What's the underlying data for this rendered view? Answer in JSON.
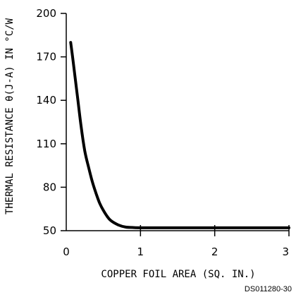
{
  "chart_data": {
    "type": "line",
    "title": "",
    "xlabel": "COPPER FOIL AREA (SQ. IN.)",
    "ylabel": "THERMAL RESISTANCE θ(J-A) IN °C/W",
    "xlim": [
      0,
      3
    ],
    "ylim": [
      50,
      200
    ],
    "x_ticks": [
      0,
      1,
      2,
      3
    ],
    "x_tick_labels": [
      "0",
      "1",
      "2",
      "3"
    ],
    "y_ticks": [
      50,
      80,
      110,
      140,
      170,
      200
    ],
    "y_tick_labels": [
      "50",
      "80",
      "110",
      "140",
      "170",
      "200"
    ],
    "grid": false,
    "legend": "none",
    "series": [
      {
        "x": [
          0.06,
          0.1,
          0.15,
          0.2,
          0.25,
          0.3,
          0.35,
          0.4,
          0.45,
          0.5,
          0.55,
          0.6,
          0.7,
          0.8,
          0.9,
          1.0,
          1.5,
          2.0,
          2.5,
          3.0
        ],
        "y": [
          180,
          164,
          143,
          122,
          105,
          94,
          84,
          76,
          69,
          64,
          60,
          57,
          54,
          52.5,
          52.2,
          52,
          52,
          52,
          52,
          52
        ]
      }
    ],
    "annotation": "DS011280-30",
    "line_color": "#000000"
  }
}
